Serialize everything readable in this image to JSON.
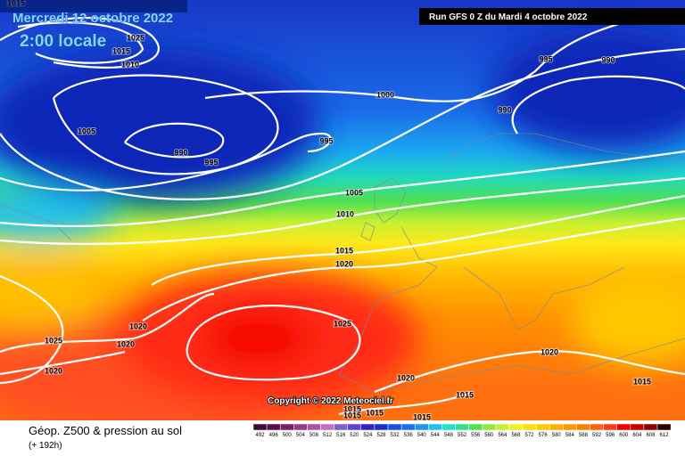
{
  "header": {
    "date": "Mercredi 12 octobre 2022",
    "time": "2:00 locale",
    "run": "Run GFS 0 Z du Mardi 4 octobre 2022"
  },
  "isobars": [
    "1015",
    "1025",
    "1015",
    "1010",
    "1005",
    "990",
    "995",
    "1000",
    "995",
    "995",
    "990",
    "990",
    "1005",
    "1010",
    "1015",
    "1020",
    "1025",
    "1020",
    "1020",
    "1025",
    "1020",
    "1020",
    "1020",
    "1015",
    "1015",
    "1015",
    "1015",
    "1015",
    "1015"
  ],
  "footer": {
    "copyright": "Copyright © 2022 Meteociel.fr",
    "title": "Géop. Z500 & pression au sol",
    "lead": "(+ 192h)"
  },
  "scale": [
    492,
    496,
    500,
    504,
    508,
    512,
    516,
    520,
    524,
    528,
    532,
    536,
    540,
    544,
    548,
    552,
    556,
    560,
    564,
    568,
    572,
    576,
    580,
    584,
    588,
    592,
    596,
    600,
    604,
    608,
    612
  ]
}
